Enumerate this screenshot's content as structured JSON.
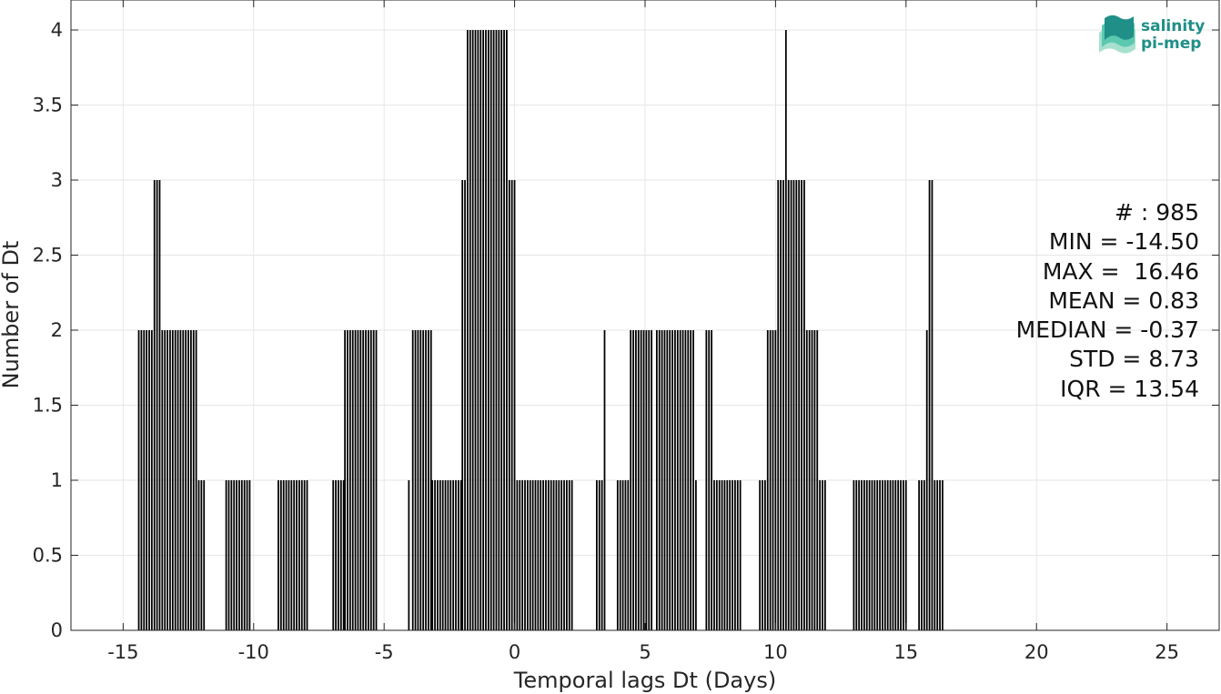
{
  "chart_data": {
    "type": "bar",
    "title": "",
    "xlabel": "Temporal lags Dt (Days)",
    "ylabel": "Number of Dt",
    "xlim": [
      -17,
      27
    ],
    "ylim": [
      0,
      4.2
    ],
    "x_ticks": [
      "-15",
      "-10",
      "-5",
      "0",
      "5",
      "10",
      "15",
      "20",
      "25"
    ],
    "y_ticks": [
      "0",
      "0.5",
      "1",
      "1.5",
      "2",
      "2.5",
      "3",
      "3.5",
      "4"
    ],
    "grid": true,
    "bar_color": "#000000",
    "bar_groups": [
      {
        "x_start": -14.45,
        "x_end": -13.85,
        "value": 2
      },
      {
        "x_start": -13.85,
        "x_end": -13.55,
        "value": 3
      },
      {
        "x_start": -13.55,
        "x_end": -12.15,
        "value": 2
      },
      {
        "x_start": -12.15,
        "x_end": -11.85,
        "value": 1
      },
      {
        "x_start": -11.1,
        "x_end": -10.05,
        "value": 1
      },
      {
        "x_start": -9.1,
        "x_end": -7.9,
        "value": 1
      },
      {
        "x_start": -7.0,
        "x_end": -6.55,
        "value": 1
      },
      {
        "x_start": -6.55,
        "x_end": -5.3,
        "value": 2
      },
      {
        "x_start": -4.1,
        "x_end": -3.95,
        "value": 1
      },
      {
        "x_start": -3.95,
        "x_end": -3.2,
        "value": 2
      },
      {
        "x_start": -3.2,
        "x_end": -2.05,
        "value": 1
      },
      {
        "x_start": -2.05,
        "x_end": -1.85,
        "value": 3
      },
      {
        "x_start": -1.85,
        "x_end": -0.25,
        "value": 4
      },
      {
        "x_start": -0.25,
        "x_end": 0.05,
        "value": 3
      },
      {
        "x_start": 0.05,
        "x_end": 2.25,
        "value": 1
      },
      {
        "x_start": 3.1,
        "x_end": 3.35,
        "value": 1
      },
      {
        "x_start": 3.4,
        "x_end": 3.5,
        "value": 2
      },
      {
        "x_start": 3.9,
        "x_end": 4.4,
        "value": 1
      },
      {
        "x_start": 4.4,
        "x_end": 5.3,
        "value": 2
      },
      {
        "x_start": 5.4,
        "x_end": 6.9,
        "value": 2
      },
      {
        "x_start": 6.9,
        "x_end": 7.0,
        "value": 1
      },
      {
        "x_start": 7.3,
        "x_end": 7.6,
        "value": 2
      },
      {
        "x_start": 7.6,
        "x_end": 8.7,
        "value": 1
      },
      {
        "x_start": 9.35,
        "x_end": 9.65,
        "value": 1
      },
      {
        "x_start": 9.65,
        "x_end": 10.05,
        "value": 2
      },
      {
        "x_start": 10.05,
        "x_end": 10.35,
        "value": 3
      },
      {
        "x_start": 10.35,
        "x_end": 10.45,
        "value": 4
      },
      {
        "x_start": 10.45,
        "x_end": 11.15,
        "value": 3
      },
      {
        "x_start": 11.15,
        "x_end": 11.65,
        "value": 2
      },
      {
        "x_start": 11.65,
        "x_end": 11.95,
        "value": 1
      },
      {
        "x_start": 12.95,
        "x_end": 15.0,
        "value": 1
      },
      {
        "x_start": 15.45,
        "x_end": 15.75,
        "value": 1
      },
      {
        "x_start": 15.75,
        "x_end": 15.85,
        "value": 2
      },
      {
        "x_start": 15.85,
        "x_end": 16.05,
        "value": 3
      },
      {
        "x_start": 16.05,
        "x_end": 16.46,
        "value": 1
      }
    ]
  },
  "stats": {
    "count": "# : 985",
    "min": "MIN = -14.50",
    "max": "MAX =  16.46",
    "mean": "MEAN = 0.83",
    "median": "MEDIAN = -0.37",
    "std": "STD = 8.73",
    "iqr": "IQR = 13.54"
  },
  "logo": {
    "line1": "salinity",
    "line2": "pi-mep",
    "colors": [
      "#1f8f88",
      "#5cc8b0",
      "#a8e0cf"
    ]
  }
}
